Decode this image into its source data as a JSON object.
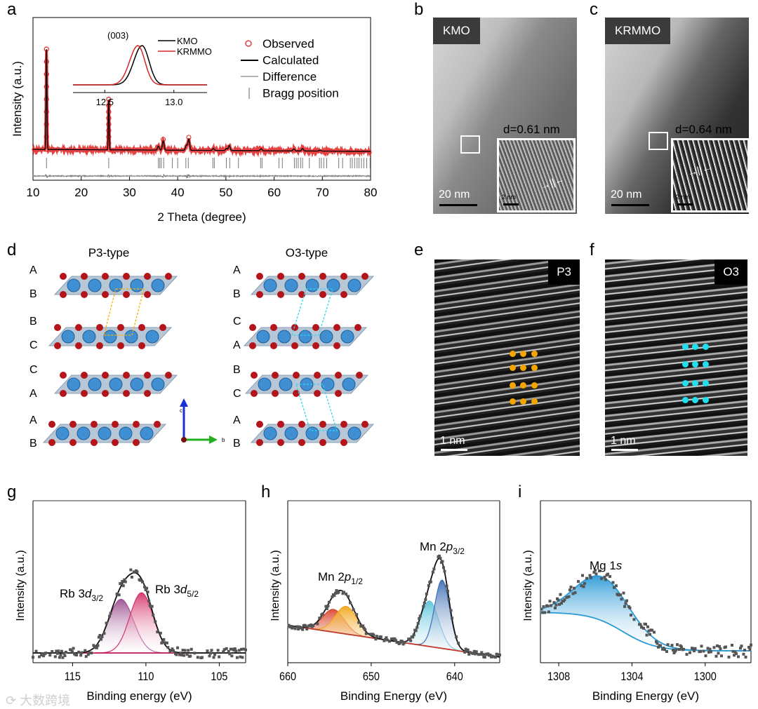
{
  "panel_labels": {
    "a": "a",
    "b": "b",
    "c": "c",
    "d": "d",
    "e": "e",
    "f": "f",
    "g": "g",
    "h": "h",
    "i": "i"
  },
  "colors": {
    "observed": "#e02020",
    "calculated": "#000000",
    "difference": "#808080",
    "bragg": "#777777",
    "kmo": "#000000",
    "krmmo": "#d62728",
    "p3_dots": "#f5a500",
    "o3_dots": "#1ee0f0"
  },
  "chart_data": [
    {
      "id": "a",
      "type": "line",
      "title": "",
      "xlabel": "2 Theta (degree)",
      "ylabel": "Intensity (a.u.)",
      "xlim": [
        10,
        80
      ],
      "xticks": [
        10,
        20,
        30,
        40,
        50,
        60,
        70,
        80
      ],
      "legend": [
        "Observed",
        "Calculated",
        "Difference",
        "Bragg position"
      ],
      "legend_position": "top-right",
      "peaks": [
        {
          "x": 12.8,
          "h": 1.0
        },
        {
          "x": 25.7,
          "h": 0.5
        },
        {
          "x": 36.0,
          "h": 0.04
        },
        {
          "x": 37.0,
          "h": 0.09
        },
        {
          "x": 41.8,
          "h": 0.05
        },
        {
          "x": 42.3,
          "h": 0.11
        },
        {
          "x": 47.4,
          "h": 0.02
        },
        {
          "x": 50.1,
          "h": 0.02
        },
        {
          "x": 50.7,
          "h": 0.05
        },
        {
          "x": 57.3,
          "h": 0.02
        },
        {
          "x": 64.1,
          "h": 0.02
        },
        {
          "x": 65.9,
          "h": 0.025
        },
        {
          "x": 69.5,
          "h": 0.01
        }
      ],
      "bragg_positions": [
        12.8,
        25.7,
        36.0,
        36.3,
        36.6,
        37.1,
        38.9,
        40.0,
        41.7,
        42.2,
        47.3,
        47.6,
        50.1,
        50.8,
        52.6,
        57.2,
        57.5,
        61.0,
        61.7,
        64.2,
        64.6,
        65.0,
        65.5,
        65.9,
        67.3,
        69.4,
        69.8,
        70.3,
        70.9,
        73.4,
        74.2,
        75.8,
        76.2,
        76.7,
        77.2,
        77.6,
        78.1,
        78.6,
        79.2,
        79.9
      ],
      "inset": {
        "annotation": "(003)",
        "xlim": [
          12.27,
          13.24
        ],
        "xticks": [
          "12.5",
          "13.0"
        ],
        "series": [
          {
            "name": "KMO",
            "center": 12.77
          },
          {
            "name": "KRMMO",
            "center": 12.74
          }
        ]
      }
    },
    {
      "id": "g",
      "type": "line",
      "xlabel": "Binding energy (eV)",
      "ylabel": "Intensity (a.u.)",
      "xlim": [
        117.7,
        103.2
      ],
      "xticks": [
        "115",
        "110",
        "105"
      ],
      "background": {
        "left": 6,
        "right": 6
      },
      "components": [
        {
          "name": "Rb 3d3/2",
          "label_main": "Rb 3",
          "label_italic": "d",
          "label_sub": "3/2",
          "center": 111.7,
          "sigma": 0.85,
          "amp": 33,
          "color": "#9b4f8f"
        },
        {
          "name": "Rb 3d5/2",
          "label_main": "Rb 3",
          "label_italic": "d",
          "label_sub": "5/2",
          "center": 110.3,
          "sigma": 0.8,
          "amp": 37,
          "color": "#d6336c"
        }
      ]
    },
    {
      "id": "h",
      "type": "line",
      "xlabel": "Binding Energy (eV)",
      "ylabel": "Intensity (a.u.)",
      "xlim": [
        660,
        634.6
      ],
      "xticks": [
        "660",
        "650",
        "640"
      ],
      "background": {
        "left": 23,
        "right": 3.5
      },
      "components": [
        {
          "name": "Mn 2p1/2 a",
          "center": 654.5,
          "sigma": 1.3,
          "amp": 14,
          "color": "#d9452b"
        },
        {
          "name": "Mn 2p1/2 b",
          "center": 653.0,
          "sigma": 1.3,
          "amp": 17,
          "color": "#f2a51c"
        },
        {
          "name": "Mn 2p3/2 a",
          "center": 643.0,
          "sigma": 1.1,
          "amp": 28,
          "color": "#5cc3da"
        },
        {
          "name": "Mn 2p3/2 b",
          "center": 641.5,
          "sigma": 0.9,
          "amp": 42,
          "color": "#3f6fb5"
        }
      ],
      "annotations": [
        {
          "main": "Mn 2",
          "italic": "p",
          "sub": "1/2"
        },
        {
          "main": "Mn 2",
          "italic": "p",
          "sub": "3/2"
        }
      ]
    },
    {
      "id": "i",
      "type": "line",
      "xlabel": "Binding Energy (eV)",
      "ylabel": "Intensity (a.u.)",
      "xlim": [
        1309,
        1297.5
      ],
      "xticks": [
        "1308",
        "1304",
        "1300"
      ],
      "background": {
        "left": 31,
        "right": 7.3,
        "step_center": 1304.5
      },
      "components": [
        {
          "name": "Mg 1s",
          "center": 1305.6,
          "sigma": 1.5,
          "amp": 27,
          "color": "#2b9ad6"
        }
      ],
      "annotations": [
        {
          "main": "Mg 1",
          "italic": "s"
        }
      ]
    }
  ],
  "tem_b": {
    "tag": "KMO",
    "d_spacing": "d=0.61 nm",
    "scale": "20 nm",
    "inset_scale": "2 nm"
  },
  "tem_c": {
    "tag": "KRMMO",
    "d_spacing": "d=0.64 nm",
    "scale": "20 nm",
    "inset_scale": "2 nm"
  },
  "structure": {
    "p3_title": "P3-type",
    "o3_title": "O3-type",
    "p3_stacking": [
      "A",
      "B",
      "B",
      "C",
      "C",
      "A",
      "A",
      "B"
    ],
    "o3_stacking": [
      "A",
      "B",
      "C",
      "A",
      "B",
      "C",
      "A",
      "B"
    ],
    "axis_c": "c",
    "axis_b": "b"
  },
  "haadf_e": {
    "tag": "P3",
    "scale": "1 nm"
  },
  "haadf_f": {
    "tag": "O3",
    "scale": "1 nm"
  },
  "watermark": "大数跨境"
}
